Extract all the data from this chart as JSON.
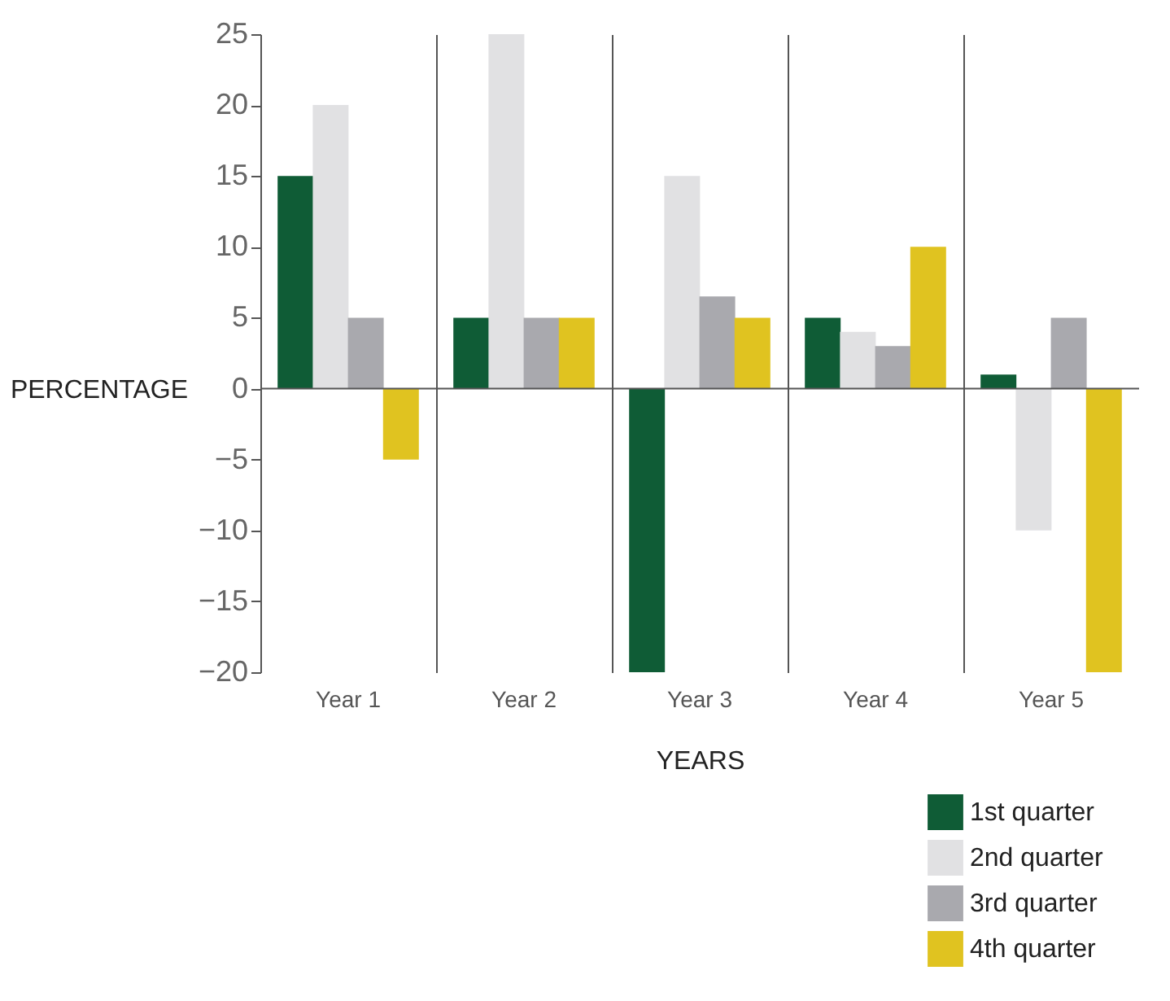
{
  "chart_data": {
    "type": "bar",
    "xlabel": "YEARS",
    "ylabel": "PERCENTAGE",
    "categories": [
      "Year 1",
      "Year 2",
      "Year 3",
      "Year 4",
      "Year 5"
    ],
    "series": [
      {
        "name": "1st quarter",
        "color": "#0f5c36",
        "values": [
          15,
          5,
          -20,
          5,
          1
        ]
      },
      {
        "name": "2nd quarter",
        "color": "#e1e1e3",
        "values": [
          20,
          25,
          15,
          4,
          -10
        ]
      },
      {
        "name": "3rd quarter",
        "color": "#a9a9ae",
        "values": [
          5,
          5,
          6.5,
          3,
          5
        ]
      },
      {
        "name": "4th quarter",
        "color": "#e0c320",
        "values": [
          -5,
          5,
          5,
          10,
          -20
        ]
      }
    ],
    "ylim": [
      -20,
      25
    ],
    "yticks": [
      -20,
      -15,
      -10,
      -5,
      0,
      5,
      10,
      15,
      20,
      25
    ],
    "ref_lines": [
      {
        "axis": "y",
        "value": 0,
        "color": "#555555"
      }
    ],
    "grid": "x",
    "legend": "bottom right"
  }
}
